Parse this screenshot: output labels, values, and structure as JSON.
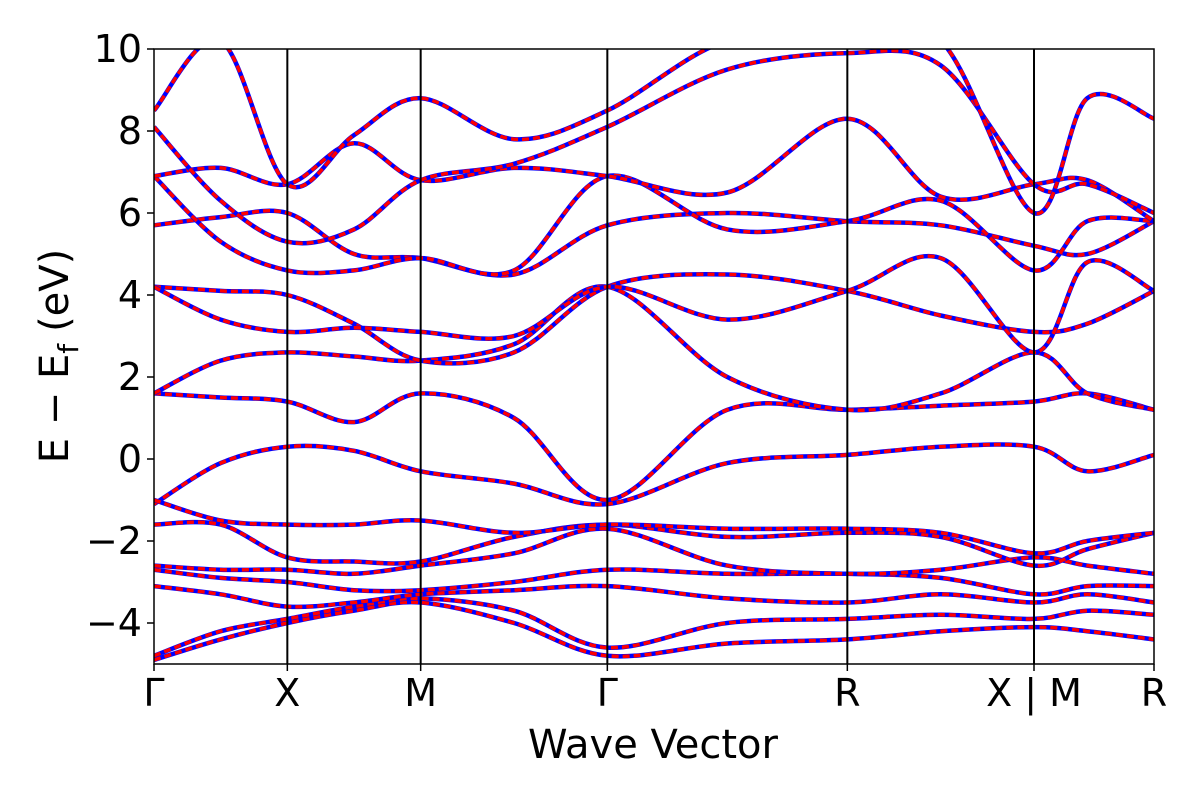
{
  "chart_data": {
    "type": "line",
    "xlabel": "Wave Vector",
    "ylabel_main": "E − E",
    "ylabel_sub": "f",
    "ylabel_unit": "(eV)",
    "ylim": [
      -5,
      10
    ],
    "xlim": [
      0,
      7.5
    ],
    "y_ticks": [
      -4,
      -2,
      0,
      2,
      4,
      6,
      8,
      10
    ],
    "y_tick_labels": [
      "−4",
      "−2",
      "0",
      "2",
      "4",
      "6",
      "8",
      "10"
    ],
    "k_points": [
      {
        "x": 0,
        "label": "Γ"
      },
      {
        "x": 1,
        "label": "X"
      },
      {
        "x": 2,
        "label": "M"
      },
      {
        "x": 3.4,
        "label": "Γ"
      },
      {
        "x": 5.2,
        "label": "R"
      },
      {
        "x": 6.6,
        "label": "X | M"
      },
      {
        "x": 7.5,
        "label": "R"
      }
    ],
    "grid": false,
    "series_colors": {
      "overlay": "#0000ff",
      "main": "#ff0000"
    },
    "bands": [
      {
        "points": [
          [
            0,
            -4.9
          ],
          [
            0.5,
            -4.4
          ],
          [
            1,
            -4.0
          ],
          [
            1.5,
            -3.7
          ],
          [
            2,
            -3.5
          ],
          [
            2.7,
            -4.0
          ],
          [
            3.4,
            -4.8
          ],
          [
            4.3,
            -4.5
          ],
          [
            5.2,
            -4.4
          ],
          [
            5.9,
            -4.2
          ],
          [
            6.6,
            -4.1
          ],
          [
            7.0,
            -4.2
          ],
          [
            7.5,
            -4.4
          ]
        ]
      },
      {
        "points": [
          [
            0,
            -4.8
          ],
          [
            0.5,
            -4.2
          ],
          [
            1,
            -3.9
          ],
          [
            1.5,
            -3.6
          ],
          [
            2,
            -3.4
          ],
          [
            2.7,
            -3.7
          ],
          [
            3.4,
            -4.6
          ],
          [
            4.3,
            -4.0
          ],
          [
            5.2,
            -3.9
          ],
          [
            5.9,
            -3.8
          ],
          [
            6.6,
            -3.9
          ],
          [
            7.0,
            -3.7
          ],
          [
            7.5,
            -3.8
          ]
        ]
      },
      {
        "points": [
          [
            0,
            -3.1
          ],
          [
            0.5,
            -3.3
          ],
          [
            1,
            -3.6
          ],
          [
            1.5,
            -3.5
          ],
          [
            2,
            -3.3
          ],
          [
            2.7,
            -3.2
          ],
          [
            3.4,
            -3.1
          ],
          [
            4.3,
            -3.4
          ],
          [
            5.2,
            -3.5
          ],
          [
            5.9,
            -3.3
          ],
          [
            6.6,
            -3.5
          ],
          [
            7.0,
            -3.3
          ],
          [
            7.5,
            -3.5
          ]
        ]
      },
      {
        "points": [
          [
            0,
            -2.7
          ],
          [
            0.5,
            -2.9
          ],
          [
            1,
            -3.0
          ],
          [
            1.5,
            -3.2
          ],
          [
            2,
            -3.2
          ],
          [
            2.7,
            -3.0
          ],
          [
            3.4,
            -2.7
          ],
          [
            4.3,
            -2.8
          ],
          [
            5.2,
            -2.8
          ],
          [
            5.9,
            -2.9
          ],
          [
            6.6,
            -3.3
          ],
          [
            7.0,
            -3.1
          ],
          [
            7.5,
            -3.1
          ]
        ]
      },
      {
        "points": [
          [
            0,
            -2.6
          ],
          [
            0.5,
            -2.7
          ],
          [
            1,
            -2.7
          ],
          [
            1.5,
            -2.8
          ],
          [
            2,
            -2.6
          ],
          [
            2.7,
            -2.3
          ],
          [
            3.4,
            -1.7
          ],
          [
            4.3,
            -2.6
          ],
          [
            5.2,
            -2.8
          ],
          [
            5.9,
            -2.7
          ],
          [
            6.6,
            -2.4
          ],
          [
            7.0,
            -2.6
          ],
          [
            7.5,
            -2.8
          ]
        ]
      },
      {
        "points": [
          [
            0,
            -1.6
          ],
          [
            0.5,
            -1.6
          ],
          [
            1,
            -2.4
          ],
          [
            1.5,
            -2.5
          ],
          [
            2,
            -2.5
          ],
          [
            2.7,
            -1.9
          ],
          [
            3.4,
            -1.6
          ],
          [
            4.3,
            -1.9
          ],
          [
            5.2,
            -1.8
          ],
          [
            5.9,
            -1.9
          ],
          [
            6.6,
            -2.6
          ],
          [
            7.0,
            -2.2
          ],
          [
            7.5,
            -1.8
          ]
        ]
      },
      {
        "points": [
          [
            0,
            -1.1
          ],
          [
            0.5,
            -0.1
          ],
          [
            1,
            0.3
          ],
          [
            1.5,
            0.2
          ],
          [
            2,
            -0.3
          ],
          [
            2.7,
            -0.6
          ],
          [
            3.4,
            -1.1
          ],
          [
            4.3,
            -0.1
          ],
          [
            5.2,
            0.1
          ],
          [
            5.9,
            0.3
          ],
          [
            6.6,
            0.3
          ],
          [
            7.0,
            -0.3
          ],
          [
            7.5,
            0.1
          ]
        ]
      },
      {
        "points": [
          [
            0,
            -1.0
          ],
          [
            0.5,
            -1.5
          ],
          [
            1,
            -1.6
          ],
          [
            1.5,
            -1.6
          ],
          [
            2,
            -1.5
          ],
          [
            2.7,
            -1.8
          ],
          [
            3.4,
            -1.6
          ],
          [
            4.3,
            -1.7
          ],
          [
            5.2,
            -1.7
          ],
          [
            5.9,
            -1.8
          ],
          [
            6.6,
            -2.3
          ],
          [
            7.0,
            -2.0
          ],
          [
            7.5,
            -1.8
          ]
        ]
      },
      {
        "points": [
          [
            0,
            1.6
          ],
          [
            0.5,
            1.5
          ],
          [
            1,
            1.4
          ],
          [
            1.5,
            0.9
          ],
          [
            2,
            1.6
          ],
          [
            2.7,
            1.0
          ],
          [
            3.4,
            -1.0
          ],
          [
            4.3,
            1.2
          ],
          [
            5.2,
            1.2
          ],
          [
            5.9,
            1.3
          ],
          [
            6.6,
            1.4
          ],
          [
            7.0,
            1.6
          ],
          [
            7.5,
            1.2
          ]
        ]
      },
      {
        "points": [
          [
            0,
            1.6
          ],
          [
            0.5,
            2.4
          ],
          [
            1,
            2.6
          ],
          [
            1.5,
            2.5
          ],
          [
            2,
            2.4
          ],
          [
            2.7,
            2.8
          ],
          [
            3.4,
            4.2
          ],
          [
            4.3,
            2.0
          ],
          [
            5.2,
            1.2
          ],
          [
            5.9,
            1.6
          ],
          [
            6.6,
            2.6
          ],
          [
            7.0,
            1.6
          ],
          [
            7.5,
            1.2
          ]
        ]
      },
      {
        "points": [
          [
            0,
            4.2
          ],
          [
            0.5,
            4.1
          ],
          [
            1,
            4.0
          ],
          [
            1.5,
            3.3
          ],
          [
            2,
            2.4
          ],
          [
            2.7,
            2.6
          ],
          [
            3.4,
            4.2
          ],
          [
            4.3,
            4.5
          ],
          [
            5.2,
            4.1
          ],
          [
            5.9,
            3.5
          ],
          [
            6.6,
            3.1
          ],
          [
            7.0,
            3.3
          ],
          [
            7.5,
            4.1
          ]
        ]
      },
      {
        "points": [
          [
            0,
            4.2
          ],
          [
            0.5,
            3.4
          ],
          [
            1,
            3.1
          ],
          [
            1.5,
            3.2
          ],
          [
            2,
            3.1
          ],
          [
            2.7,
            3.0
          ],
          [
            3.4,
            4.2
          ],
          [
            4.3,
            3.4
          ],
          [
            5.2,
            4.1
          ],
          [
            5.9,
            4.9
          ],
          [
            6.6,
            2.6
          ],
          [
            7.0,
            4.8
          ],
          [
            7.5,
            4.1
          ]
        ]
      },
      {
        "points": [
          [
            0,
            5.7
          ],
          [
            0.5,
            5.9
          ],
          [
            1,
            6.0
          ],
          [
            1.5,
            5.0
          ],
          [
            2,
            4.9
          ],
          [
            2.7,
            4.5
          ],
          [
            3.4,
            5.7
          ],
          [
            4.3,
            6.0
          ],
          [
            5.2,
            5.8
          ],
          [
            5.9,
            5.7
          ],
          [
            6.6,
            5.2
          ],
          [
            7.0,
            5.0
          ],
          [
            7.5,
            5.8
          ]
        ]
      },
      {
        "points": [
          [
            0,
            6.9
          ],
          [
            0.5,
            5.3
          ],
          [
            1,
            4.6
          ],
          [
            1.5,
            4.6
          ],
          [
            2,
            4.9
          ],
          [
            2.7,
            4.6
          ],
          [
            3.4,
            6.9
          ],
          [
            4.3,
            5.6
          ],
          [
            5.2,
            5.8
          ],
          [
            5.9,
            6.3
          ],
          [
            6.6,
            4.6
          ],
          [
            7.0,
            5.8
          ],
          [
            7.5,
            5.8
          ]
        ]
      },
      {
        "points": [
          [
            0,
            6.9
          ],
          [
            0.5,
            7.1
          ],
          [
            1,
            6.7
          ],
          [
            1.5,
            7.7
          ],
          [
            2,
            6.8
          ],
          [
            2.7,
            7.1
          ],
          [
            3.4,
            6.9
          ],
          [
            4.3,
            6.5
          ],
          [
            5.2,
            8.3
          ],
          [
            5.9,
            6.4
          ],
          [
            6.6,
            6.7
          ],
          [
            7.0,
            6.8
          ],
          [
            7.5,
            5.8
          ]
        ]
      },
      {
        "points": [
          [
            0,
            8.1
          ],
          [
            0.5,
            6.3
          ],
          [
            1,
            5.3
          ],
          [
            1.5,
            5.6
          ],
          [
            2,
            6.8
          ],
          [
            2.7,
            7.2
          ],
          [
            3.4,
            8.1
          ],
          [
            4.3,
            9.5
          ],
          [
            5.2,
            9.9
          ],
          [
            5.9,
            9.6
          ],
          [
            6.6,
            6.7
          ],
          [
            7.0,
            6.7
          ],
          [
            7.5,
            6.0
          ]
        ]
      },
      {
        "points": [
          [
            0,
            8.5
          ],
          [
            0.5,
            10.2
          ],
          [
            1,
            6.7
          ],
          [
            1.5,
            7.9
          ],
          [
            2,
            8.8
          ],
          [
            2.7,
            7.8
          ],
          [
            3.4,
            8.5
          ],
          [
            4.3,
            10.2
          ],
          [
            5.2,
            10.2
          ],
          [
            5.9,
            10.2
          ],
          [
            6.6,
            6.0
          ],
          [
            7.0,
            8.8
          ],
          [
            7.5,
            8.3
          ]
        ]
      }
    ]
  }
}
